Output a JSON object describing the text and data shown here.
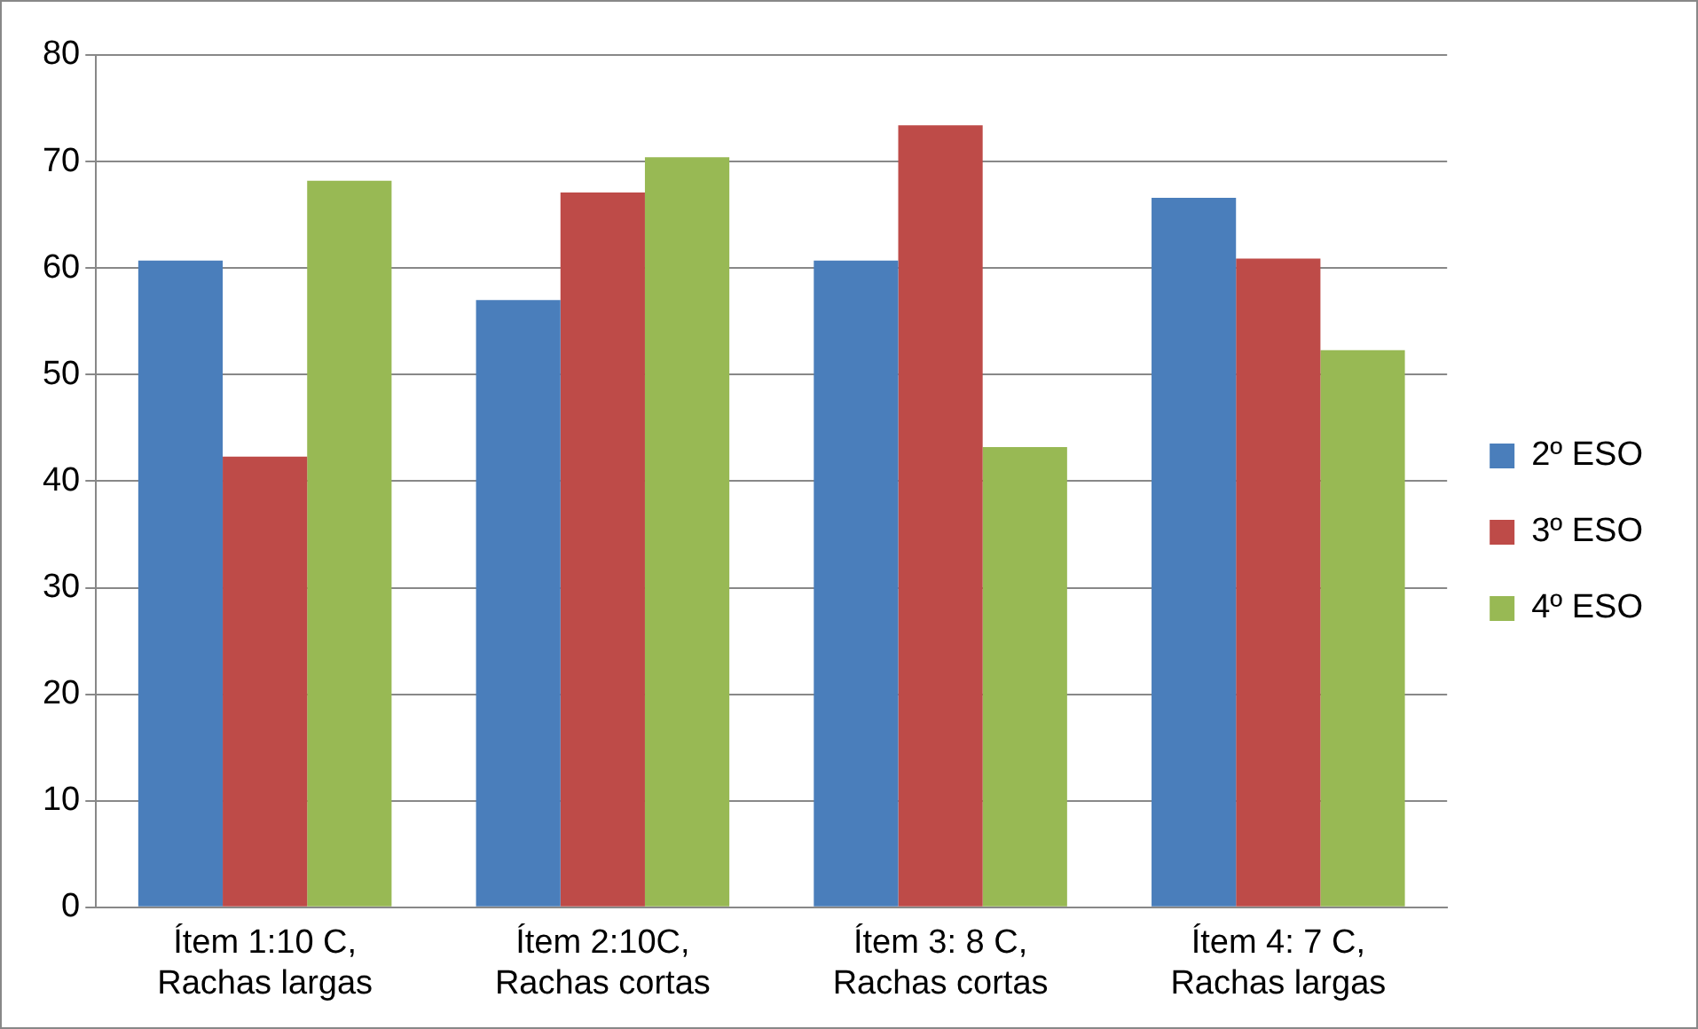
{
  "chart_data": {
    "type": "bar",
    "categories": [
      "Ítem 1:10 C, Rachas largas",
      "Ítem 2:10C, Rachas cortas",
      "Ítem 3: 8 C, Rachas cortas",
      "Ítem 4: 7 C, Rachas largas"
    ],
    "series": [
      {
        "name": "2º ESO",
        "color": "#4a7ebb",
        "values": [
          60.7,
          57,
          60.7,
          66.6
        ]
      },
      {
        "name": "3º ESO",
        "color": "#be4b48",
        "values": [
          42.3,
          67.1,
          73.4,
          60.9
        ]
      },
      {
        "name": "4º ESO",
        "color": "#98b954",
        "values": [
          68.2,
          70.4,
          43.2,
          52.3
        ]
      }
    ],
    "ylim": [
      0,
      80
    ],
    "yticks": [
      0,
      10,
      20,
      30,
      40,
      50,
      60,
      70,
      80
    ],
    "grid": "y",
    "legend": "right"
  }
}
